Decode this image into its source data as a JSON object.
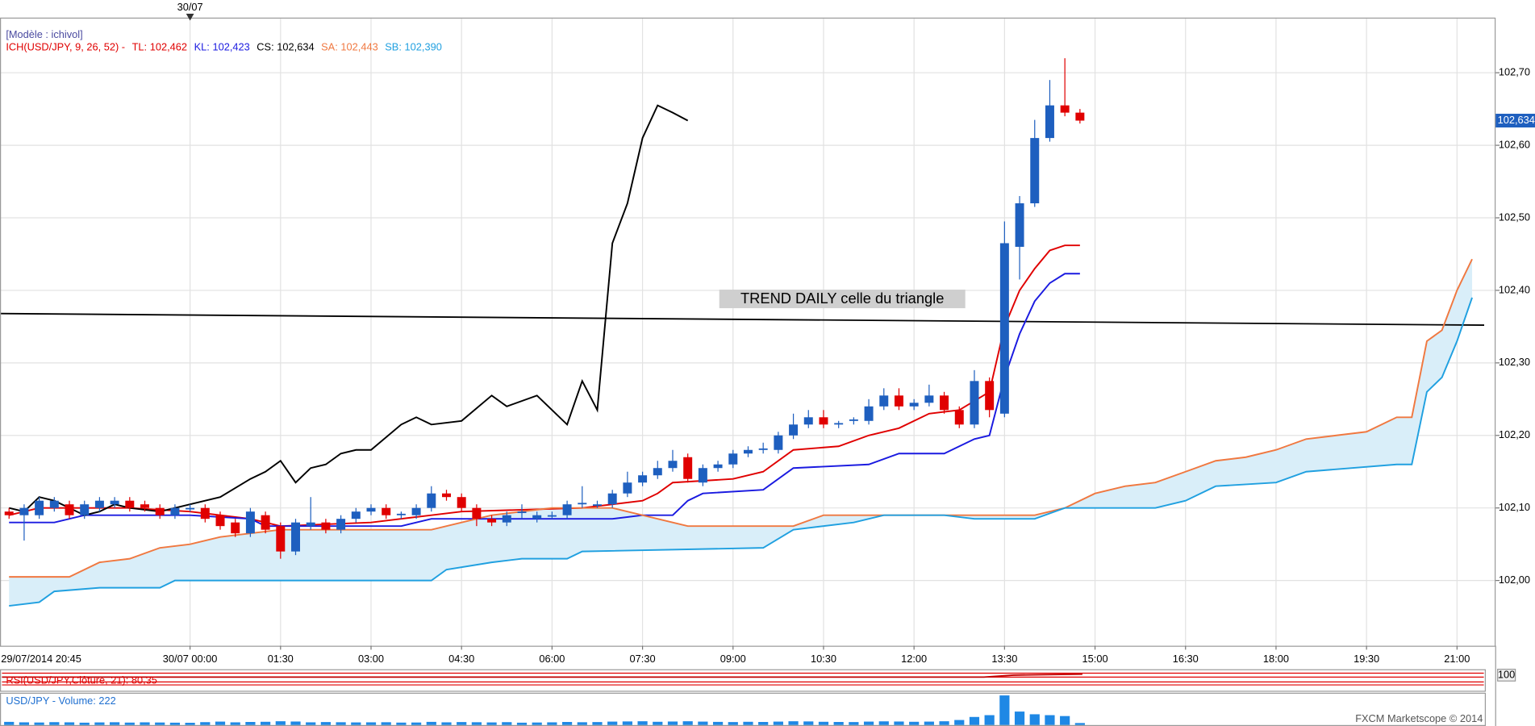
{
  "chart_data": {
    "type": "candlestick",
    "header_model": "[Modèle : ichivol]",
    "header_name": "ICH(USD/JPY, 9, 26, 52) -",
    "up_color": "#1e5fbf",
    "down_color": "#e00000",
    "cloud_color": "#d9eef9",
    "grid": true,
    "x": [
      -3,
      -2.75,
      -2.5,
      -2.25,
      -2,
      -1.75,
      -1.5,
      -1.25,
      -1,
      -0.75,
      -0.5,
      -0.25,
      0,
      0.25,
      0.5,
      0.75,
      1,
      1.25,
      1.5,
      1.75,
      2,
      2.25,
      2.5,
      2.75,
      3,
      3.25,
      3.5,
      3.75,
      4,
      4.25,
      4.5,
      4.75,
      5,
      5.25,
      5.5,
      5.75,
      6,
      6.25,
      6.5,
      6.75,
      7,
      7.25,
      7.5,
      7.75,
      8,
      8.25,
      8.5,
      8.75,
      9,
      9.25,
      9.5,
      9.75,
      10,
      10.25,
      10.5,
      10.75,
      11,
      11.25,
      11.5,
      11.75,
      12,
      12.25,
      12.5,
      12.75,
      13,
      13.25,
      13.5,
      13.75,
      14,
      14.25,
      14.5,
      14.75
    ],
    "open": [
      102.095,
      102.09,
      102.09,
      102.1,
      102.105,
      102.09,
      102.1,
      102.105,
      102.11,
      102.105,
      102.1,
      102.09,
      102.1,
      102.1,
      102.09,
      102.08,
      102.065,
      102.09,
      102.075,
      102.04,
      102.075,
      102.08,
      102.07,
      102.085,
      102.095,
      102.1,
      102.09,
      102.09,
      102.1,
      102.12,
      102.115,
      102.1,
      102.085,
      102.08,
      102.095,
      102.085,
      102.09,
      102.09,
      102.105,
      102.105,
      102.105,
      102.12,
      102.135,
      102.145,
      102.155,
      102.17,
      102.135,
      102.155,
      102.16,
      102.175,
      102.18,
      102.18,
      102.2,
      102.215,
      102.225,
      102.215,
      102.22,
      102.22,
      102.24,
      102.255,
      102.24,
      102.245,
      102.255,
      102.235,
      102.215,
      102.275,
      102.23,
      102.46,
      102.52,
      102.61,
      102.655,
      102.645
    ],
    "high": [
      102.1,
      102.105,
      102.115,
      102.115,
      102.11,
      102.11,
      102.115,
      102.115,
      102.115,
      102.11,
      102.105,
      102.105,
      102.105,
      102.105,
      102.095,
      102.085,
      102.1,
      102.095,
      102.08,
      102.085,
      102.115,
      102.085,
      102.09,
      102.1,
      102.105,
      102.105,
      102.095,
      102.105,
      102.13,
      102.125,
      102.12,
      102.105,
      102.09,
      102.095,
      102.105,
      102.095,
      102.095,
      102.11,
      102.13,
      102.11,
      102.125,
      102.15,
      102.15,
      102.165,
      102.18,
      102.175,
      102.16,
      102.165,
      102.18,
      102.185,
      102.19,
      102.205,
      102.23,
      102.235,
      102.235,
      102.22,
      102.225,
      102.25,
      102.265,
      102.265,
      102.25,
      102.27,
      102.26,
      102.24,
      102.29,
      102.28,
      102.495,
      102.53,
      102.635,
      102.69,
      102.72,
      102.65
    ],
    "low": [
      102.085,
      102.055,
      102.085,
      102.095,
      102.085,
      102.085,
      102.095,
      102.1,
      102.095,
      102.095,
      102.085,
      102.085,
      102.095,
      102.08,
      102.07,
      102.06,
      102.06,
      102.065,
      102.03,
      102.035,
      102.07,
      102.065,
      102.065,
      102.08,
      102.09,
      102.085,
      102.085,
      102.085,
      102.095,
      102.11,
      102.095,
      102.075,
      102.075,
      102.075,
      102.085,
      102.08,
      102.085,
      102.085,
      102.1,
      102.1,
      102.1,
      102.115,
      102.13,
      102.14,
      102.15,
      102.135,
      102.13,
      102.15,
      102.155,
      102.17,
      102.175,
      102.175,
      102.195,
      102.21,
      102.21,
      102.21,
      102.215,
      102.215,
      102.235,
      102.235,
      102.235,
      102.24,
      102.23,
      102.21,
      102.21,
      102.225,
      102.225,
      102.415,
      102.515,
      102.605,
      102.64,
      102.63
    ],
    "close": [
      102.09,
      102.1,
      102.11,
      102.11,
      102.09,
      102.105,
      102.11,
      102.11,
      102.1,
      102.1,
      102.09,
      102.1,
      102.1,
      102.085,
      102.075,
      102.065,
      102.095,
      102.07,
      102.04,
      102.08,
      102.08,
      102.07,
      102.085,
      102.095,
      102.1,
      102.09,
      102.092,
      102.1,
      102.12,
      102.115,
      102.1,
      102.085,
      102.08,
      102.09,
      102.095,
      102.09,
      102.09,
      102.105,
      102.107,
      102.105,
      102.12,
      102.135,
      102.145,
      102.155,
      102.165,
      102.14,
      102.155,
      102.16,
      102.175,
      102.18,
      102.182,
      102.2,
      102.215,
      102.225,
      102.215,
      102.217,
      102.222,
      102.24,
      102.255,
      102.24,
      102.245,
      102.255,
      102.235,
      102.215,
      102.275,
      102.235,
      102.465,
      102.52,
      102.61,
      102.655,
      102.645,
      102.634
    ],
    "volume": [
      350,
      300,
      280,
      320,
      300,
      260,
      290,
      310,
      270,
      300,
      280,
      260,
      250,
      320,
      380,
      300,
      340,
      360,
      420,
      390,
      300,
      330,
      310,
      290,
      300,
      310,
      270,
      280,
      350,
      300,
      330,
      310,
      290,
      320,
      260,
      280,
      300,
      340,
      310,
      330,
      380,
      400,
      420,
      360,
      390,
      420,
      380,
      350,
      330,
      360,
      340,
      380,
      420,
      400,
      360,
      340,
      330,
      380,
      410,
      390,
      360,
      380,
      420,
      560,
      900,
      1100,
      3300,
      1500,
      1200,
      1100,
      1000,
      222
    ],
    "volume_color": "#1e88e5",
    "volume_ylim": [
      0,
      3600
    ],
    "volume_label": "USD/JPY - Volume: 222",
    "rsi_label": "RSI(USD/JPY,Clôture, 21): 80,35",
    "rsi_top_label": "100",
    "footer": "FXCM Marketscope © 2014",
    "series": [
      {
        "name": "TL:",
        "last_label": "102,462",
        "color": "#e00000",
        "x": [
          -3,
          -2.5,
          -1,
          0,
          1,
          1.5,
          3,
          4,
          4.5,
          6.5,
          7.5,
          7.75,
          8,
          9,
          9.5,
          10,
          10.75,
          11.25,
          11.75,
          12.25,
          12.75,
          13.25,
          13.5,
          13.75,
          14,
          14.25,
          14.5,
          14.75
        ],
        "values": [
          102.09,
          102.1,
          102.1,
          102.095,
          102.085,
          102.075,
          102.08,
          102.09,
          102.095,
          102.1,
          102.11,
          102.12,
          102.135,
          102.14,
          102.15,
          102.18,
          102.185,
          102.2,
          102.21,
          102.23,
          102.235,
          102.26,
          102.35,
          102.4,
          102.43,
          102.455,
          102.462,
          102.462
        ]
      },
      {
        "name": "KL:",
        "last_label": "102,423",
        "color": "#1a1ae0",
        "x": [
          -3,
          -2.25,
          -1.75,
          0,
          1,
          1.25,
          3.5,
          4,
          7,
          7.5,
          8,
          8.25,
          8.5,
          9.5,
          10,
          11.25,
          11.75,
          12.5,
          13,
          13.25,
          13.5,
          13.75,
          14,
          14.25,
          14.5,
          14.75
        ],
        "values": [
          102.08,
          102.08,
          102.09,
          102.09,
          102.085,
          102.075,
          102.075,
          102.085,
          102.085,
          102.09,
          102.09,
          102.11,
          102.12,
          102.125,
          102.155,
          102.16,
          102.175,
          102.175,
          102.195,
          102.2,
          102.28,
          102.34,
          102.385,
          102.41,
          102.423,
          102.423
        ]
      },
      {
        "name": "CS:",
        "last_label": "102,634",
        "color": "#000000",
        "x": [
          -3,
          -2.75,
          -2.5,
          -2.25,
          -2,
          -1.75,
          -1.5,
          -1.25,
          -1,
          -0.5,
          0,
          0.25,
          0.5,
          1,
          1.25,
          1.5,
          1.75,
          2,
          2.25,
          2.5,
          2.75,
          3,
          3.5,
          3.75,
          4,
          4.5,
          5,
          5.25,
          5.75,
          6.25,
          6.5,
          6.75,
          7,
          7.25,
          7.5,
          7.75,
          8,
          8.25
        ],
        "values": [
          102.1,
          102.095,
          102.115,
          102.11,
          102.1,
          102.09,
          102.095,
          102.105,
          102.1,
          102.095,
          102.105,
          102.11,
          102.115,
          102.14,
          102.15,
          102.165,
          102.135,
          102.155,
          102.16,
          102.175,
          102.18,
          102.18,
          102.215,
          102.225,
          102.215,
          102.22,
          102.255,
          102.24,
          102.255,
          102.215,
          102.275,
          102.235,
          102.465,
          102.52,
          102.61,
          102.655,
          102.645,
          102.634
        ]
      },
      {
        "name": "SA:",
        "last_label": "102,443",
        "color": "#f07840",
        "x": [
          -3,
          -2,
          -1.75,
          -1.5,
          -1,
          -0.5,
          0,
          0.5,
          1,
          1.5,
          4,
          4.5,
          5,
          6,
          7,
          7.5,
          8,
          8.25,
          10,
          10.5,
          14,
          14.5,
          15,
          15.5,
          16,
          16.5,
          17,
          17.5,
          18,
          18.5,
          19,
          19.5,
          20,
          20.25,
          20.5,
          20.75,
          21,
          21.25
        ],
        "values": [
          102.005,
          102.005,
          102.015,
          102.025,
          102.03,
          102.045,
          102.05,
          102.06,
          102.065,
          102.07,
          102.07,
          102.08,
          102.09,
          102.1,
          102.1,
          102.09,
          102.08,
          102.075,
          102.075,
          102.09,
          102.09,
          102.1,
          102.12,
          102.13,
          102.135,
          102.15,
          102.165,
          102.17,
          102.18,
          102.195,
          102.2,
          102.205,
          102.225,
          102.225,
          102.33,
          102.345,
          102.4,
          102.443
        ]
      },
      {
        "name": "SB:",
        "last_label": "102,390",
        "color": "#20a0e0",
        "x": [
          -3,
          -2.5,
          -2.25,
          -1.5,
          -0.5,
          -0.25,
          4,
          4.25,
          5,
          5.5,
          6.25,
          6.5,
          9.5,
          10,
          11,
          11.5,
          12.5,
          13,
          14,
          14.5,
          16,
          16.5,
          17,
          18,
          18.5,
          20,
          20.25,
          20.5,
          20.75,
          21,
          21.25
        ],
        "values": [
          101.965,
          101.97,
          101.985,
          101.99,
          101.99,
          102.0,
          102.0,
          102.015,
          102.025,
          102.03,
          102.03,
          102.04,
          102.045,
          102.07,
          102.08,
          102.09,
          102.09,
          102.085,
          102.085,
          102.1,
          102.1,
          102.11,
          102.13,
          102.135,
          102.15,
          102.16,
          102.16,
          102.26,
          102.28,
          102.33,
          102.39
        ]
      }
    ],
    "trend_line": {
      "label": "TREND DAILY celle du triangle",
      "color": "#000000",
      "x": [
        -3.15,
        21.45
      ],
      "values": [
        102.368,
        102.352
      ]
    },
    "date_marker": {
      "x": 0,
      "label": "30/07"
    },
    "last_price": {
      "value": 102.634,
      "label": "102,634"
    },
    "xlim": [
      -3.15,
      21.64
    ],
    "ylim": [
      101.91,
      102.776
    ],
    "xticks": [
      {
        "value": -3.25,
        "label": "29/07/2014 20:45"
      },
      {
        "value": 0,
        "label": "30/07 00:00"
      },
      {
        "value": 1.5,
        "label": "01:30"
      },
      {
        "value": 3,
        "label": "03:00"
      },
      {
        "value": 4.5,
        "label": "04:30"
      },
      {
        "value": 6,
        "label": "06:00"
      },
      {
        "value": 7.5,
        "label": "07:30"
      },
      {
        "value": 9,
        "label": "09:00"
      },
      {
        "value": 10.5,
        "label": "10:30"
      },
      {
        "value": 12,
        "label": "12:00"
      },
      {
        "value": 13.5,
        "label": "13:30"
      },
      {
        "value": 15,
        "label": "15:00"
      },
      {
        "value": 16.5,
        "label": "16:30"
      },
      {
        "value": 18,
        "label": "18:00"
      },
      {
        "value": 19.5,
        "label": "19:30"
      },
      {
        "value": 21,
        "label": "21:00"
      }
    ],
    "yticks": [
      {
        "value": 102.0,
        "label": "102,00"
      },
      {
        "value": 102.1,
        "label": "102,10"
      },
      {
        "value": 102.2,
        "label": "102,20"
      },
      {
        "value": 102.3,
        "label": "102,30"
      },
      {
        "value": 102.4,
        "label": "102,40"
      },
      {
        "value": 102.5,
        "label": "102,50"
      },
      {
        "value": 102.6,
        "label": "102,60"
      },
      {
        "value": 102.7,
        "label": "102,70"
      }
    ]
  }
}
